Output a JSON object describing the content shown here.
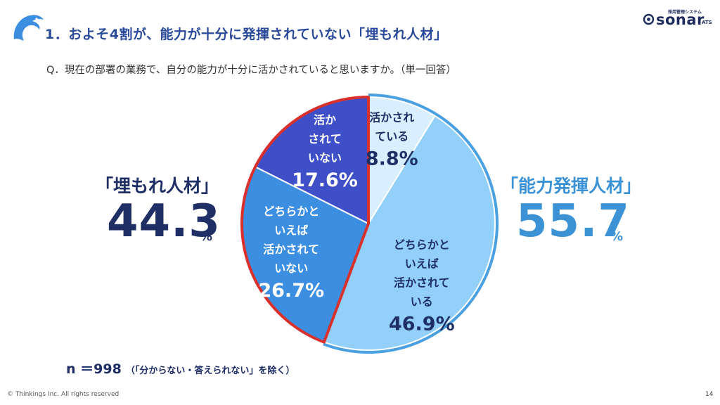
{
  "header": {
    "title": "1．およそ4割が、能力が十分に発揮されていない「埋もれ人材」",
    "logo_sub": "採用管理システム",
    "logo_main": "sonar",
    "logo_ats": "ATS"
  },
  "question": "Q．現在の部署の業務で、自分の能力が十分に活かされていると思いますか。（単一回答）",
  "summary": {
    "left_label": "「埋もれ人材」",
    "left_value": "44.3",
    "left_unit": "%",
    "right_label": "「能力発揮人材」",
    "right_value": "55.7",
    "right_unit": "%"
  },
  "note": {
    "n": "n ＝998",
    "exclusion": "（「分からない・答えられない」を除く）"
  },
  "footer": {
    "copyright": "© Thinkings Inc. All rights reserved",
    "page": "14"
  },
  "colors": {
    "title": "#2a4a9a",
    "dark_navy": "#1f2f66",
    "light_blue_text": "#3b93d6",
    "highlight_border": "#d9302c",
    "outer_border": "#4aa0e0"
  },
  "chart_data": {
    "type": "pie",
    "title": "",
    "start": "12 o'clock",
    "direction": "clockwise",
    "slices": [
      {
        "label_lines": [
          "活かされ",
          "ている"
        ],
        "value": 8.8,
        "value_label": "8.8%",
        "color": "#d9efff",
        "text_color": "#1f2f66"
      },
      {
        "label_lines": [
          "どちらかと",
          "いえば",
          "活かされて",
          "いる"
        ],
        "value": 46.9,
        "value_label": "46.9%",
        "color": "#92d0fa",
        "text_color": "#1f2f66"
      },
      {
        "label_lines": [
          "どちらかと",
          "いえば",
          "活かされて",
          "いない"
        ],
        "value": 26.7,
        "value_label": "26.7%",
        "color": "#3c8ee0",
        "text_color": "#ffffff"
      },
      {
        "label_lines": [
          "活か",
          "されて",
          "いない"
        ],
        "value": 17.6,
        "value_label": "17.6%",
        "color": "#3f4fc8",
        "text_color": "#ffffff"
      }
    ],
    "groups": [
      {
        "name": "「埋もれ人材」",
        "value": 44.3,
        "slices": [
          2,
          3
        ]
      },
      {
        "name": "「能力発揮人材」",
        "value": 55.7,
        "slices": [
          0,
          1
        ]
      }
    ]
  }
}
